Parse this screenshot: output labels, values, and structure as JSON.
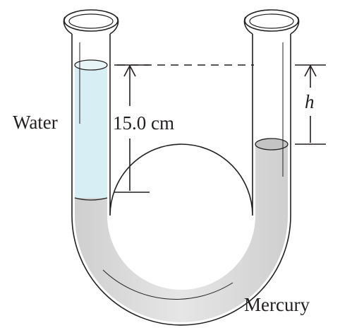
{
  "diagram": {
    "labels": {
      "water": "Water",
      "height_dimension": "15.0 cm",
      "height_difference": "h",
      "mercury": "Mercury"
    },
    "colors": {
      "water": "#d7eef4",
      "mercury": "#d9d9d9",
      "mercury_surface": "#c4c4c4",
      "tube_outline": "#231f20",
      "background": "#ffffff"
    }
  }
}
